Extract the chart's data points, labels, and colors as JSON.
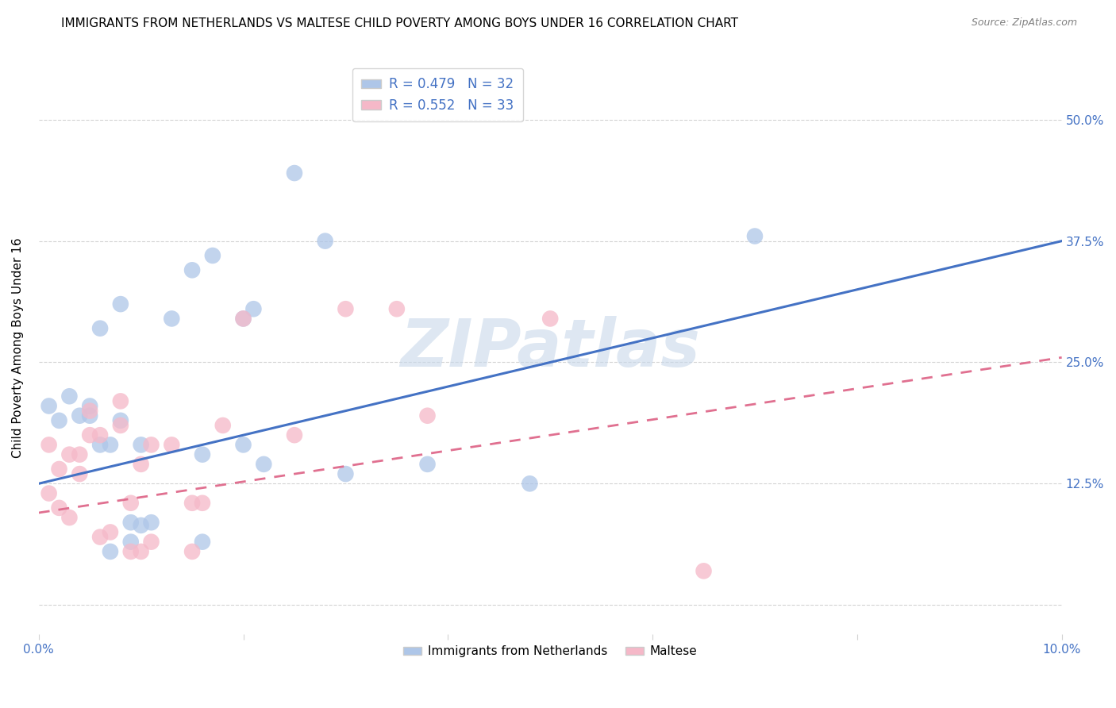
{
  "title": "IMMIGRANTS FROM NETHERLANDS VS MALTESE CHILD POVERTY AMONG BOYS UNDER 16 CORRELATION CHART",
  "source": "Source: ZipAtlas.com",
  "ylabel": "Child Poverty Among Boys Under 16",
  "xlim": [
    0.0,
    0.1
  ],
  "ylim": [
    -0.03,
    0.56
  ],
  "xticks": [
    0.0,
    0.02,
    0.04,
    0.06,
    0.08,
    0.1
  ],
  "xtick_labels": [
    "0.0%",
    "",
    "",
    "",
    "",
    "10.0%"
  ],
  "yticks_right": [
    0.0,
    0.125,
    0.25,
    0.375,
    0.5
  ],
  "ytick_right_labels": [
    "",
    "12.5%",
    "25.0%",
    "37.5%",
    "50.0%"
  ],
  "R_blue": 0.479,
  "N_blue": 32,
  "R_pink": 0.552,
  "N_pink": 33,
  "legend_label_blue": "Immigrants from Netherlands",
  "legend_label_pink": "Maltese",
  "blue_color": "#aec6e8",
  "pink_color": "#f5b8c8",
  "blue_line_color": "#4472c4",
  "pink_line_color": "#e07090",
  "blue_line_x0": 0.0,
  "blue_line_y0": 0.125,
  "blue_line_x1": 0.1,
  "blue_line_y1": 0.375,
  "pink_line_x0": 0.0,
  "pink_line_y0": 0.095,
  "pink_line_x1": 0.1,
  "pink_line_y1": 0.255,
  "blue_points": [
    [
      0.001,
      0.205
    ],
    [
      0.002,
      0.19
    ],
    [
      0.003,
      0.215
    ],
    [
      0.004,
      0.195
    ],
    [
      0.005,
      0.205
    ],
    [
      0.005,
      0.195
    ],
    [
      0.006,
      0.285
    ],
    [
      0.006,
      0.165
    ],
    [
      0.007,
      0.165
    ],
    [
      0.007,
      0.055
    ],
    [
      0.008,
      0.31
    ],
    [
      0.008,
      0.19
    ],
    [
      0.009,
      0.085
    ],
    [
      0.009,
      0.065
    ],
    [
      0.01,
      0.082
    ],
    [
      0.01,
      0.165
    ],
    [
      0.011,
      0.085
    ],
    [
      0.013,
      0.295
    ],
    [
      0.015,
      0.345
    ],
    [
      0.016,
      0.155
    ],
    [
      0.016,
      0.065
    ],
    [
      0.017,
      0.36
    ],
    [
      0.02,
      0.295
    ],
    [
      0.02,
      0.165
    ],
    [
      0.021,
      0.305
    ],
    [
      0.022,
      0.145
    ],
    [
      0.025,
      0.445
    ],
    [
      0.028,
      0.375
    ],
    [
      0.03,
      0.135
    ],
    [
      0.038,
      0.145
    ],
    [
      0.048,
      0.125
    ],
    [
      0.07,
      0.38
    ]
  ],
  "pink_points": [
    [
      0.001,
      0.165
    ],
    [
      0.001,
      0.115
    ],
    [
      0.002,
      0.14
    ],
    [
      0.002,
      0.1
    ],
    [
      0.003,
      0.09
    ],
    [
      0.003,
      0.155
    ],
    [
      0.004,
      0.155
    ],
    [
      0.004,
      0.135
    ],
    [
      0.005,
      0.175
    ],
    [
      0.005,
      0.2
    ],
    [
      0.006,
      0.175
    ],
    [
      0.006,
      0.07
    ],
    [
      0.007,
      0.075
    ],
    [
      0.008,
      0.185
    ],
    [
      0.008,
      0.21
    ],
    [
      0.009,
      0.105
    ],
    [
      0.009,
      0.055
    ],
    [
      0.01,
      0.055
    ],
    [
      0.01,
      0.145
    ],
    [
      0.011,
      0.165
    ],
    [
      0.011,
      0.065
    ],
    [
      0.013,
      0.165
    ],
    [
      0.015,
      0.105
    ],
    [
      0.015,
      0.055
    ],
    [
      0.016,
      0.105
    ],
    [
      0.018,
      0.185
    ],
    [
      0.02,
      0.295
    ],
    [
      0.025,
      0.175
    ],
    [
      0.03,
      0.305
    ],
    [
      0.035,
      0.305
    ],
    [
      0.038,
      0.195
    ],
    [
      0.05,
      0.295
    ],
    [
      0.065,
      0.035
    ]
  ],
  "background_color": "#ffffff",
  "grid_color": "#d3d3d3",
  "title_fontsize": 11,
  "axis_label_fontsize": 11,
  "tick_label_fontsize": 11,
  "watermark": "ZIPatlas",
  "watermark_color": "#c8d8ea",
  "watermark_fontsize": 60
}
